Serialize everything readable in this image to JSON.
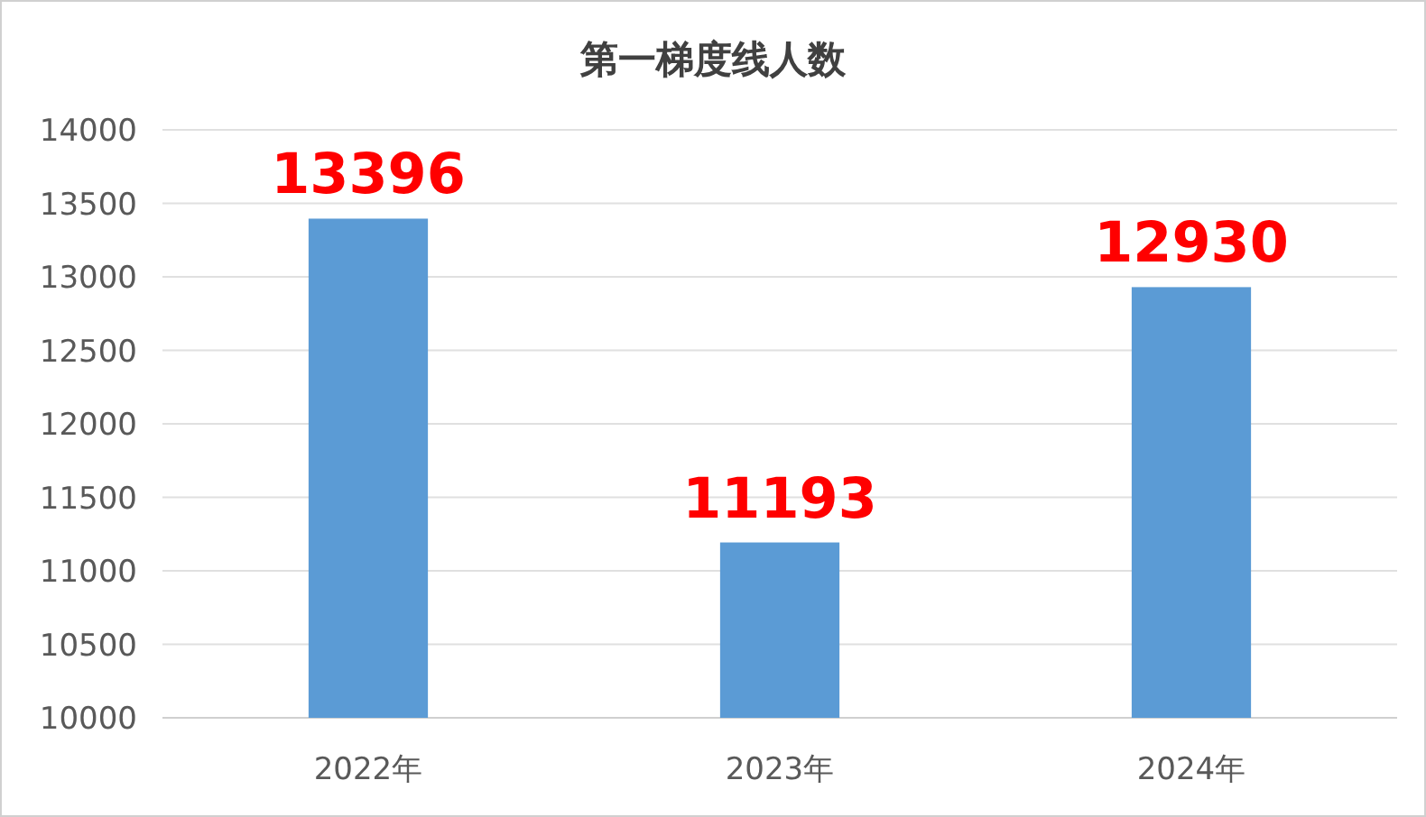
{
  "chart_data": {
    "type": "bar",
    "title": "第一梯度线人数",
    "categories": [
      "2022年",
      "2023年",
      "2024年"
    ],
    "values": [
      13396,
      11193,
      12930
    ],
    "color": "#5b9bd5",
    "ylim": [
      10000,
      14000
    ],
    "yticks": [
      10000,
      10500,
      11000,
      11500,
      12000,
      12500,
      13000,
      13500,
      14000
    ],
    "grid": "y",
    "data_labels": true
  }
}
